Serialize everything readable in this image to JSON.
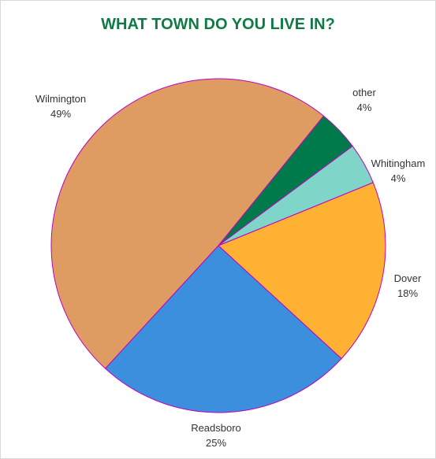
{
  "colors": {
    "title": "#0f7a45",
    "slice_border": "#c000c0"
  },
  "chart_data": {
    "type": "pie",
    "title": "WHAT TOWN DO YOU LIVE IN?",
    "categories": [
      "other",
      "Whitingham",
      "Dover",
      "Readsboro",
      "Wilmington"
    ],
    "values": [
      4,
      4,
      18,
      25,
      49
    ],
    "value_labels": [
      "4%",
      "4%",
      "18%",
      "25%",
      "49%"
    ],
    "colors": [
      "#007a4a",
      "#7fd6c8",
      "#ffb133",
      "#3b8fdc",
      "#de9b62"
    ],
    "legend": "none",
    "start_angle_deg": 39
  }
}
